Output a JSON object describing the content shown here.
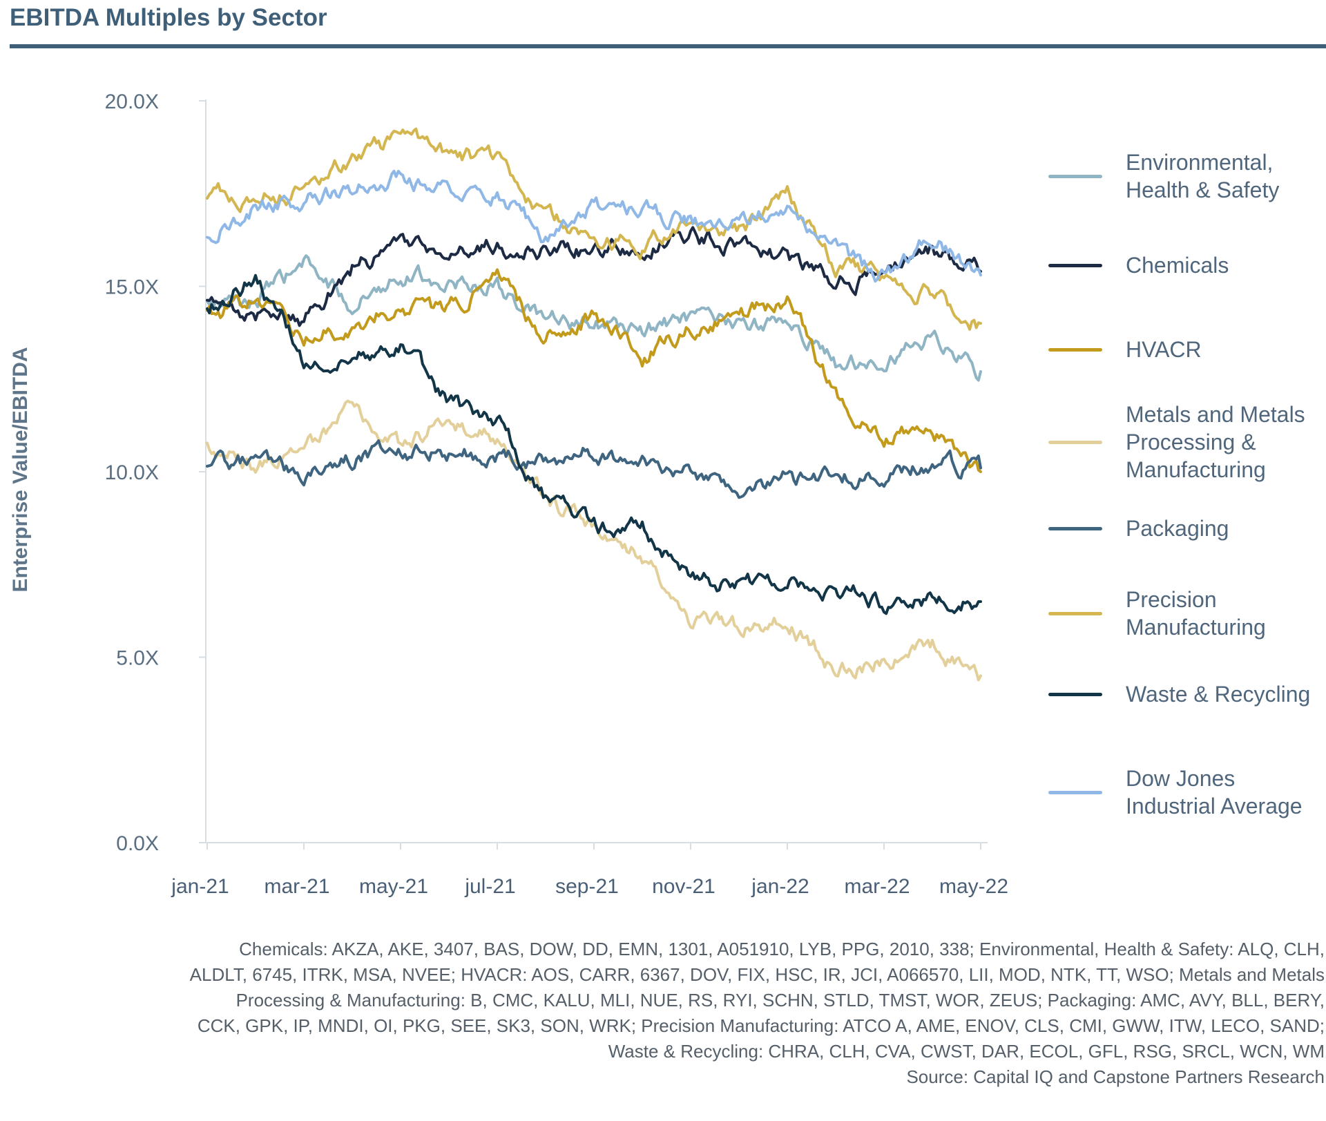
{
  "title": "EBITDA Multiples by Sector",
  "chart_data": {
    "type": "line",
    "ylabel": "Enterprise Value/EBITDA",
    "ylim": [
      0,
      20
    ],
    "yticks": [
      "0.0X",
      "5.0X",
      "10.0X",
      "15.0X",
      "20.0X"
    ],
    "x_tick_labels": [
      "jan-21",
      "mar-21",
      "may-21",
      "jul-21",
      "sep-21",
      "nov-21",
      "jan-22",
      "mar-22",
      "may-22"
    ],
    "x": [
      "jan-21",
      "feb-21",
      "mar-21",
      "apr-21",
      "may-21",
      "jun-21",
      "jul-21",
      "aug-21",
      "sep-21",
      "oct-21",
      "nov-21",
      "dec-21",
      "jan-22",
      "feb-22",
      "mar-22",
      "apr-22",
      "may-22"
    ],
    "series": [
      {
        "name": "Environmental, Health & Safety",
        "color": "#8fb4c4",
        "values": [
          14.5,
          14.6,
          15.6,
          14.5,
          15.4,
          15.1,
          15.0,
          14.0,
          14.0,
          13.8,
          14.1,
          13.9,
          14.1,
          12.9,
          13.1,
          13.6,
          12.7
        ]
      },
      {
        "name": "Chemicals",
        "color": "#1c2a44",
        "values": [
          14.5,
          14.3,
          14.1,
          15.5,
          16.1,
          15.9,
          16.1,
          15.9,
          16.0,
          16.2,
          16.4,
          16.1,
          15.8,
          15.1,
          15.3,
          16.0,
          15.4
        ]
      },
      {
        "name": "HVACR",
        "color": "#c29a1c",
        "values": [
          14.2,
          14.6,
          13.7,
          13.9,
          14.5,
          14.3,
          15.2,
          13.7,
          14.3,
          13.1,
          13.9,
          14.2,
          14.6,
          12.1,
          11.0,
          11.1,
          10.0
        ]
      },
      {
        "name": "Metals and Metals Processing & Manufacturing",
        "color": "#e3cf9a",
        "values": [
          10.6,
          10.2,
          10.5,
          11.8,
          10.6,
          11.5,
          10.8,
          9.2,
          8.6,
          7.8,
          6.1,
          5.8,
          5.9,
          4.7,
          4.9,
          5.3,
          4.5
        ]
      },
      {
        "name": "Packaging",
        "color": "#3e6480",
        "values": [
          10.3,
          10.3,
          10.0,
          10.3,
          10.6,
          10.5,
          10.5,
          10.3,
          10.6,
          10.2,
          9.9,
          9.6,
          9.8,
          9.8,
          10.0,
          10.2,
          10.1
        ]
      },
      {
        "name": "Precision Manufacturing",
        "color": "#d4b650",
        "values": [
          17.5,
          17.4,
          17.6,
          18.4,
          19.0,
          18.6,
          18.4,
          16.9,
          16.4,
          16.0,
          16.8,
          16.5,
          17.4,
          15.6,
          15.1,
          14.8,
          14.0
        ]
      },
      {
        "name": "Waste & Recycling",
        "color": "#123548",
        "values": [
          14.5,
          15.2,
          13.0,
          13.2,
          13.4,
          11.8,
          11.4,
          9.3,
          8.5,
          8.5,
          7.2,
          6.9,
          7.1,
          6.8,
          6.5,
          6.6,
          6.5
        ]
      },
      {
        "name": "Dow Jones Industrial Average",
        "color": "#8fb8e6",
        "values": [
          16.4,
          17.2,
          17.3,
          17.6,
          18.0,
          17.5,
          17.5,
          16.3,
          17.2,
          17.0,
          16.8,
          16.6,
          17.3,
          16.0,
          15.2,
          16.3,
          15.3
        ]
      }
    ],
    "legend_placement": "right",
    "grid": false
  },
  "legend_labels": [
    [
      "Environmental,",
      "Health & Safety"
    ],
    [
      "Chemicals"
    ],
    [
      "HVACR"
    ],
    [
      "Metals and Metals",
      "Processing &",
      "Manufacturing"
    ],
    [
      "Packaging"
    ],
    [
      "Precision",
      "Manufacturing"
    ],
    [
      "Waste & Recycling"
    ],
    [
      "Dow Jones",
      "Industrial Average"
    ]
  ],
  "footnote": [
    "Chemicals: AKZA, AKE, 3407, BAS, DOW, DD, EMN, 1301, A051910, LYB, PPG, 2010, 338; Environmental, Health & Safety: ALQ, CLH,",
    "ALDLT, 6745, ITRK, MSA, NVEE; HVACR: AOS, CARR, 6367, DOV, FIX, HSC, IR, JCI, A066570, LII, MOD, NTK, TT, WSO; Metals and Metals",
    "Processing & Manufacturing: B, CMC, KALU, MLI, NUE, RS, RYI, SCHN, STLD, TMST, WOR, ZEUS; Packaging: AMC, AVY, BLL, BERY,",
    "CCK, GPK, IP, MNDI, OI, PKG, SEE, SK3, SON, WRK; Precision Manufacturing: ATCO A, AME, ENOV, CLS, CMI, GWW, ITW, LECO, SAND;",
    "Waste & Recycling: CHRA, CLH, CVA, CWST, DAR, ECOL, GFL, RSG, SRCL, WCN, WM",
    "Source: Capital IQ and Capstone Partners Research"
  ]
}
